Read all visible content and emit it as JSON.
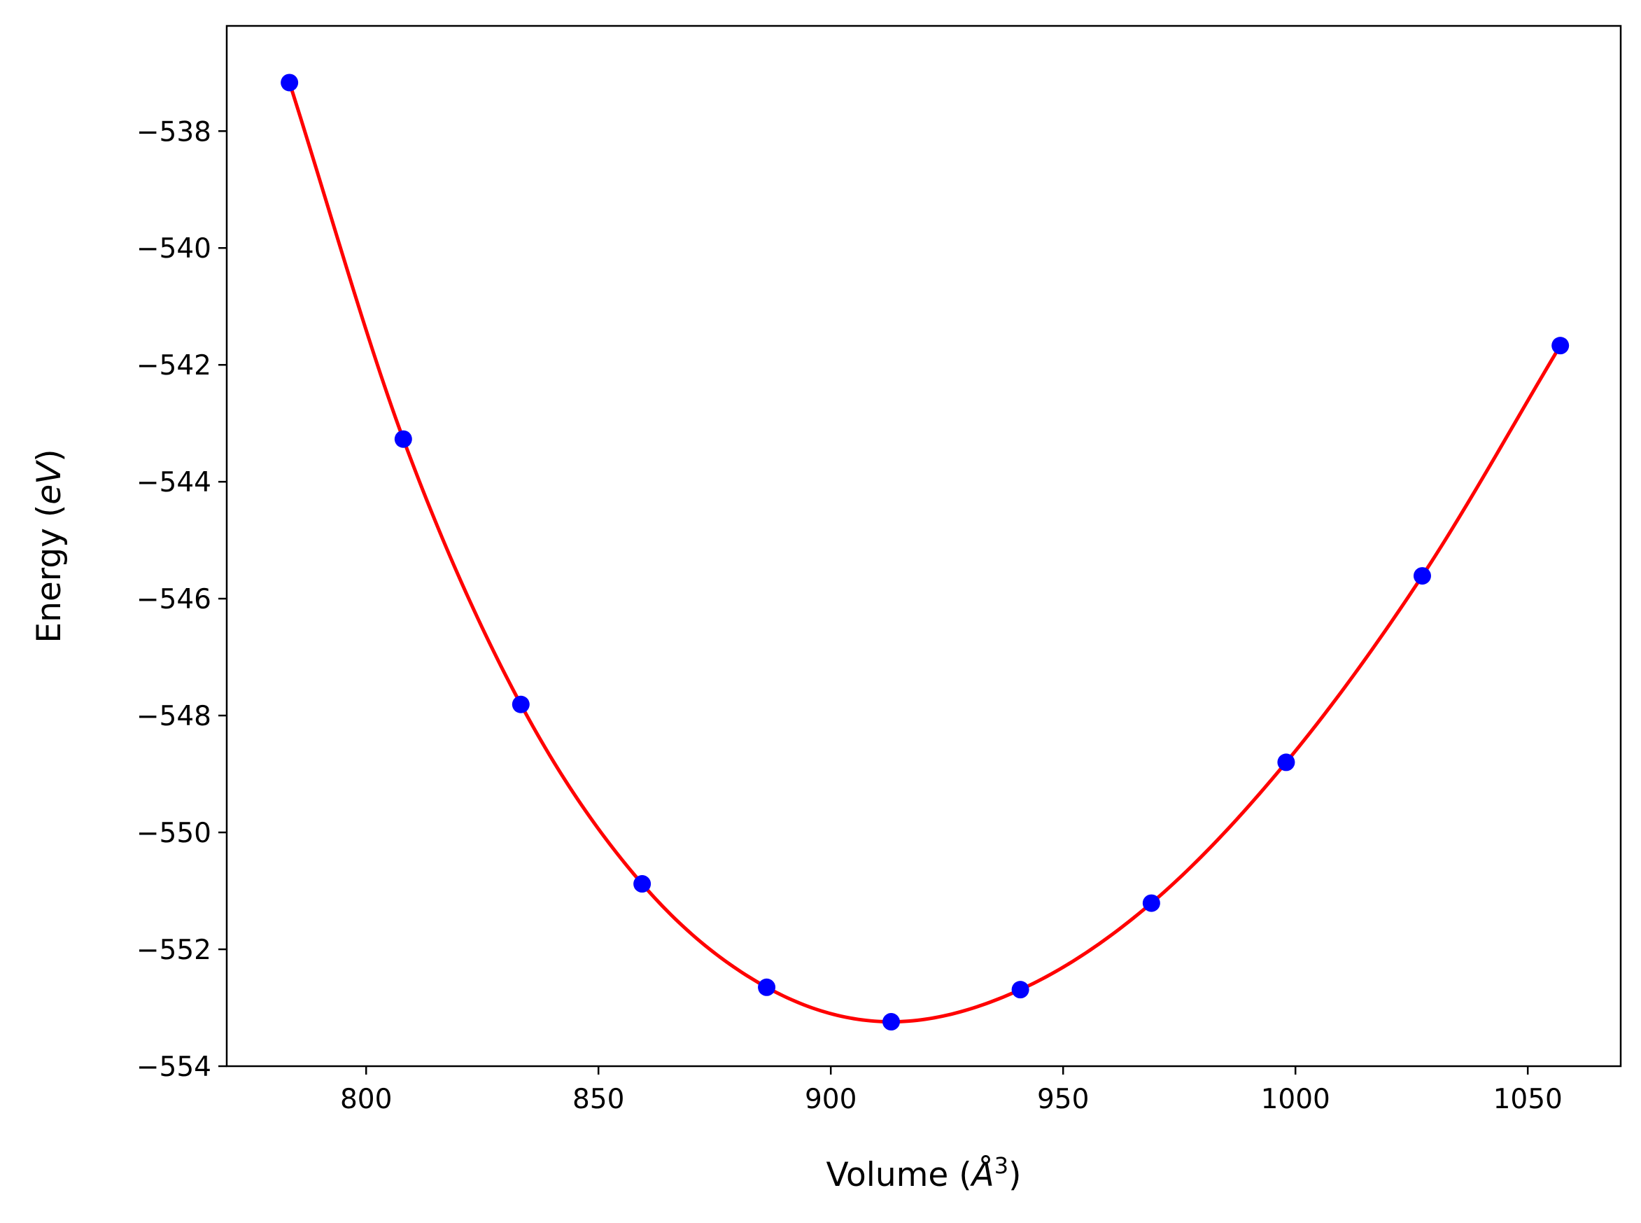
{
  "chart_data": {
    "type": "scatter",
    "title": "",
    "xlabel": "Volume (Å³)",
    "xlabel_parts": {
      "prefix": "Volume (",
      "symbol": "Å",
      "sup": "3",
      "suffix": ")"
    },
    "ylabel": "Energy (eV)",
    "ylabel_parts": {
      "prefix": "Energy (",
      "symbol": "eV",
      "suffix": ")"
    },
    "xlim": [
      770,
      1070
    ],
    "ylim": [
      -554,
      -536.2
    ],
    "x_ticks": [
      800,
      850,
      900,
      950,
      1000,
      1050
    ],
    "x_tick_labels": [
      "800",
      "850",
      "900",
      "950",
      "1000",
      "1050"
    ],
    "y_ticks": [
      -538,
      -540,
      -542,
      -544,
      -546,
      -548,
      -550,
      -552,
      -554
    ],
    "y_tick_labels": [
      "−538",
      "−540",
      "−542",
      "−544",
      "−546",
      "−548",
      "−550",
      "−552",
      "−554"
    ],
    "grid": false,
    "series": [
      {
        "type": "scatter",
        "color": "#0000ff",
        "x": [
          783.5,
          808.0,
          833.3,
          859.4,
          886.2,
          913.0,
          940.8,
          969.0,
          998.0,
          1027.3,
          1057.0
        ],
        "y": [
          -537.17,
          -543.27,
          -547.81,
          -550.88,
          -552.65,
          -553.24,
          -552.69,
          -551.21,
          -548.8,
          -545.61,
          -541.67
        ]
      },
      {
        "type": "line",
        "color": "#ff0000",
        "x": [
          783.5,
          808.0,
          833.3,
          859.4,
          886.2,
          913.0,
          940.8,
          969.0,
          998.0,
          1027.3,
          1057.0
        ],
        "y": [
          -537.17,
          -543.27,
          -547.81,
          -550.88,
          -552.65,
          -553.24,
          -552.69,
          -551.21,
          -548.8,
          -545.61,
          -541.67
        ]
      }
    ]
  }
}
